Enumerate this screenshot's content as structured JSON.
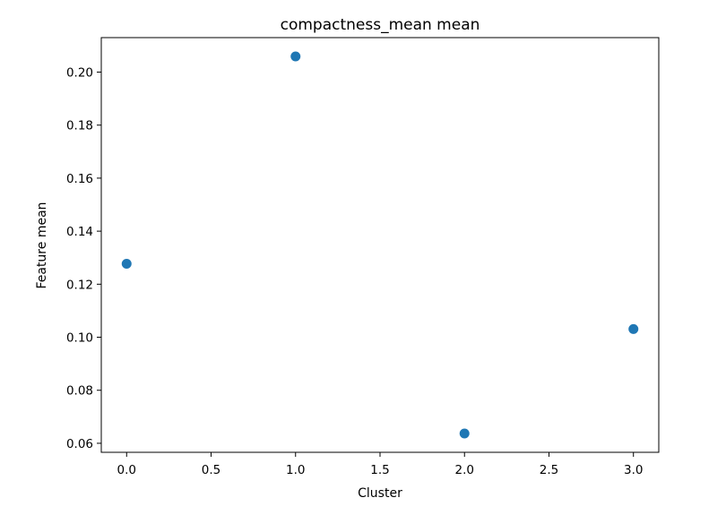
{
  "chart_data": {
    "type": "scatter",
    "title": "compactness_mean mean",
    "xlabel": "Cluster",
    "ylabel": "Feature mean",
    "x": [
      0,
      1,
      2,
      3
    ],
    "y": [
      0.1277,
      0.2059,
      0.0637,
      0.1031
    ],
    "xlim": [
      -0.15,
      3.15
    ],
    "ylim": [
      0.0566,
      0.213
    ],
    "xticks": [
      0,
      0.5,
      1,
      1.5,
      2,
      2.5,
      3
    ],
    "xtick_labels": [
      "0.0",
      "0.5",
      "1.0",
      "1.5",
      "2.0",
      "2.5",
      "3.0"
    ],
    "yticks": [
      0.06,
      0.08,
      0.1,
      0.12,
      0.14,
      0.16,
      0.18,
      0.2
    ],
    "ytick_labels": [
      "0.06",
      "0.08",
      "0.10",
      "0.12",
      "0.14",
      "0.16",
      "0.18",
      "0.20"
    ],
    "marker_color": "#1f77b4",
    "grid": false,
    "legend": "none"
  }
}
